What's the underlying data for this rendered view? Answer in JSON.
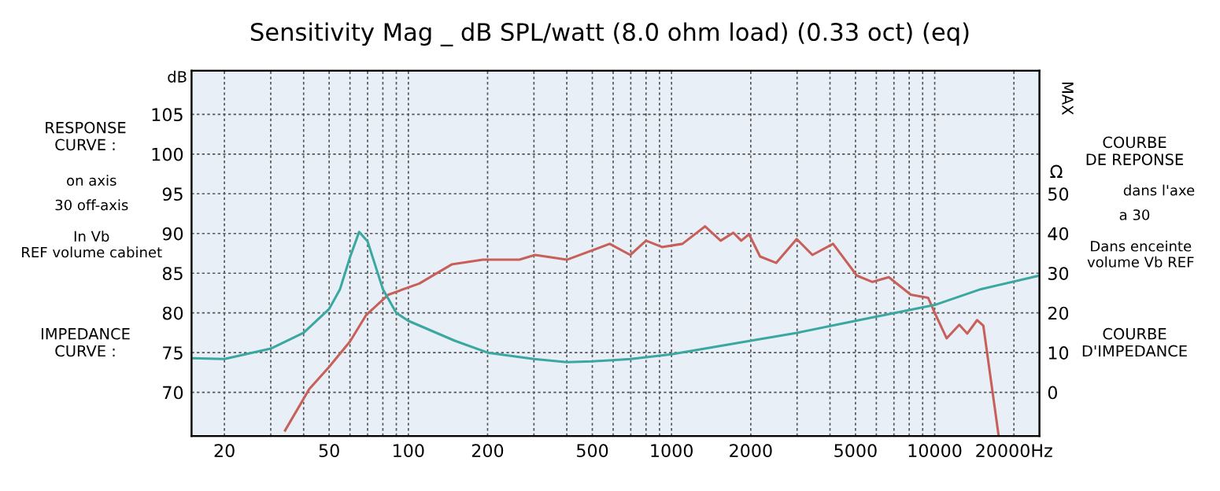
{
  "chart_data": {
    "type": "line",
    "title": "Sensitivity Mag _ dB SPL/watt (8.0 ohm load) (0.33 oct) (eq)",
    "ylabel": "dB",
    "y2label": "Ω",
    "log": "x",
    "grid": true,
    "legend": false,
    "xlim": [
      15,
      25000
    ],
    "xticks": [
      20,
      {
        "value": 30,
        "label": null
      },
      {
        "value": 40,
        "label": null
      },
      50,
      {
        "value": 60,
        "label": null
      },
      {
        "value": 70,
        "label": null
      },
      {
        "value": 80,
        "label": null
      },
      {
        "value": 90,
        "label": null
      },
      100,
      200,
      {
        "value": 300,
        "label": null
      },
      {
        "value": 400,
        "label": null
      },
      500,
      {
        "value": 600,
        "label": null
      },
      {
        "value": 700,
        "label": null
      },
      {
        "value": 800,
        "label": null
      },
      {
        "value": 900,
        "label": null
      },
      1000,
      2000,
      {
        "value": 3000,
        "label": null
      },
      {
        "value": 4000,
        "label": null
      },
      5000,
      {
        "value": 6000,
        "label": null
      },
      {
        "value": 7000,
        "label": null
      },
      {
        "value": 8000,
        "label": null
      },
      {
        "value": 9000,
        "label": null
      },
      10000,
      {
        "value": 20000,
        "label": "20000Hz"
      }
    ],
    "ylim": [
      64.5,
      110.5
    ],
    "yticks": [
      70,
      75,
      80,
      85,
      90,
      95,
      100,
      105
    ],
    "y2lim": [
      -11,
      81
    ],
    "y2ticks": [
      0,
      10,
      20,
      30,
      40,
      50
    ],
    "annotations": [
      "MAX",
      "RESPONSE CURVE :",
      "on axis",
      "30 off-axis",
      "In Vb REF volume cabinet",
      "IMPEDANCE CURVE :",
      "COURBE DE REPONSE",
      "dans l'axe",
      "a 30",
      "Dans enceinte volume Vb REF",
      "COURBE D'IMPEDANCE"
    ],
    "series": [
      {
        "color": "#c8605a",
        "x": [
          34,
          42,
          50,
          60,
          69,
          84,
          110,
          146,
          192,
          264,
          303,
          400,
          582,
          697,
          800,
          920,
          1100,
          1340,
          1537,
          1717,
          1840,
          1970,
          2170,
          2500,
          2990,
          3430,
          4110,
          5060,
          5800,
          6690,
          8110,
          9440,
          10100,
          11100,
          12400,
          13300,
          14500,
          15300,
          17500
        ],
        "values": [
          65.2,
          70.4,
          73.2,
          76.4,
          79.7,
          82.3,
          83.7,
          86.1,
          86.7,
          86.7,
          87.3,
          86.7,
          88.7,
          87.3,
          89.1,
          88.3,
          88.7,
          90.9,
          89.1,
          90.1,
          89.1,
          89.9,
          87.1,
          86.3,
          89.3,
          87.3,
          88.7,
          84.7,
          83.9,
          84.5,
          82.3,
          81.9,
          79.7,
          76.8,
          78.5,
          77.4,
          79.1,
          78.4,
          64.5
        ]
      },
      {
        "color": "#3aa8a0",
        "axis": "y2",
        "x": [
          15,
          20,
          30,
          40,
          50,
          55,
          60,
          65,
          70,
          80,
          90,
          100,
          150,
          200,
          300,
          400,
          500,
          700,
          1000,
          2000,
          3000,
          5000,
          10000,
          15000,
          25000
        ],
        "values": [
          8.6,
          8.4,
          11,
          15,
          21,
          26,
          34,
          40.4,
          38,
          26,
          20,
          18,
          13,
          10,
          8.4,
          7.6,
          7.8,
          8.4,
          9.6,
          13,
          15,
          18,
          22,
          26,
          29.4
        ]
      }
    ]
  }
}
